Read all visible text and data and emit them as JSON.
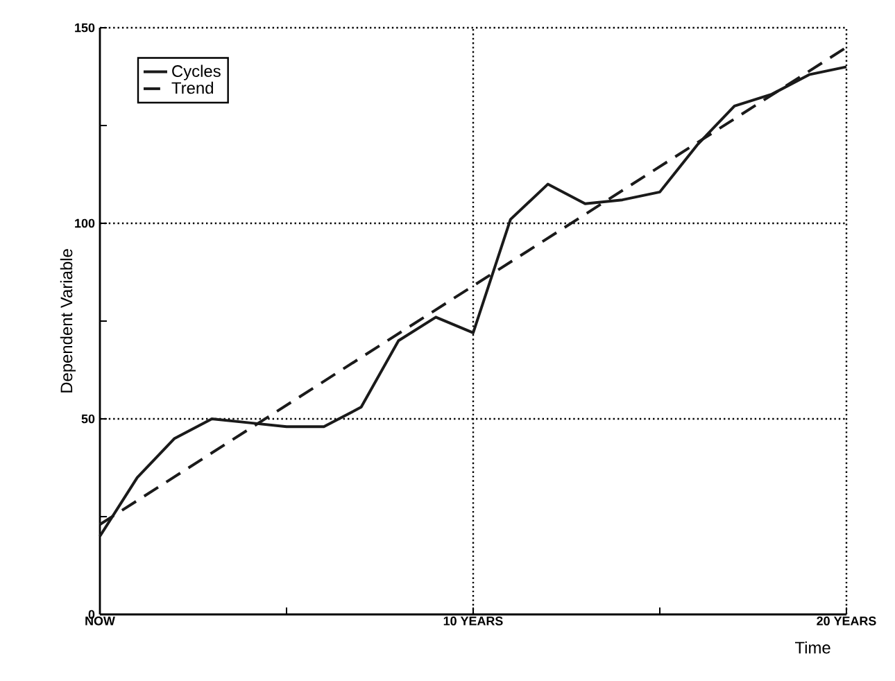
{
  "chart_data": {
    "type": "line",
    "xlabel": "Time",
    "ylabel": "Dependent Variable",
    "x": [
      0,
      1,
      2,
      3,
      4,
      5,
      6,
      7,
      8,
      9,
      10,
      11,
      12,
      13,
      14,
      15,
      16,
      17,
      18,
      19,
      20
    ],
    "series": [
      {
        "name": "Cycles",
        "color": "#1a1a1a",
        "line_style": "solid",
        "values": [
          20,
          35,
          45,
          50,
          49,
          48,
          48,
          53,
          70,
          76,
          72,
          101,
          110,
          105,
          106,
          108,
          120,
          130,
          133,
          138,
          140
        ]
      },
      {
        "name": "Trend",
        "color": "#1a1a1a",
        "line_style": "dashed",
        "x": [
          0,
          20
        ],
        "values": [
          23,
          145
        ]
      }
    ],
    "xlim": [
      0,
      20
    ],
    "ylim": [
      0,
      150
    ],
    "xticks": [
      {
        "value": 0,
        "label": "NOW"
      },
      {
        "value": 5,
        "label": null
      },
      {
        "value": 10,
        "label": "10 YEARS"
      },
      {
        "value": 15,
        "label": null
      },
      {
        "value": 20,
        "label": "20 YEARS"
      }
    ],
    "yticks": [
      0,
      {
        "value": 25,
        "label": null
      },
      50,
      {
        "value": 75,
        "label": null
      },
      100,
      {
        "value": 125,
        "label": null
      },
      150
    ],
    "grid": true,
    "legend": "top left",
    "marker": "none"
  }
}
